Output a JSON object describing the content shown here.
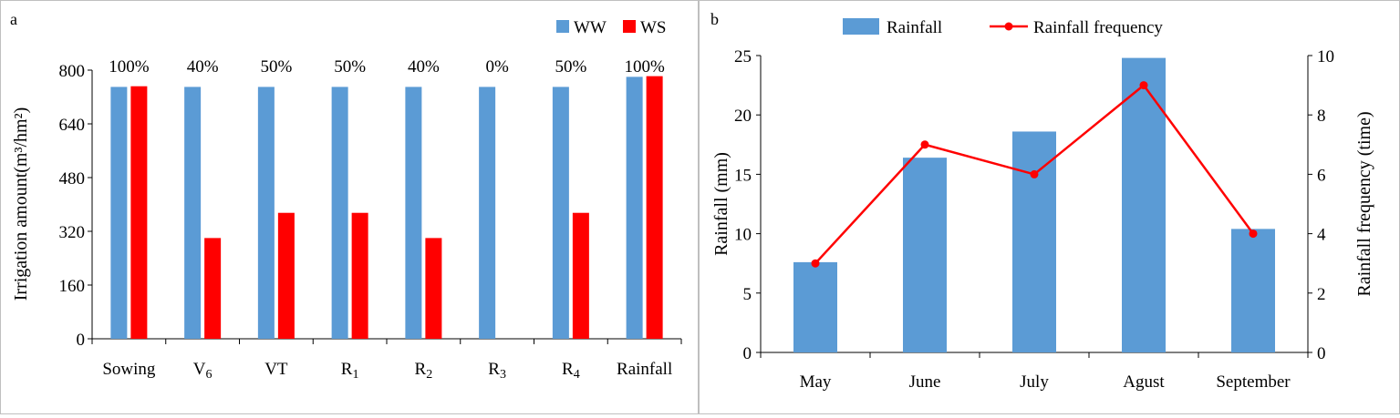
{
  "chart_data": [
    {
      "type": "bar",
      "panel_label": "a",
      "categories": [
        "Sowing",
        "V6",
        "VT",
        "R1",
        "R2",
        "R3",
        "R4",
        "Rainfall"
      ],
      "category_labels": [
        {
          "main": "Sowing",
          "sub": ""
        },
        {
          "main": "V",
          "sub": "6"
        },
        {
          "main": "VT",
          "sub": ""
        },
        {
          "main": "R",
          "sub": "1"
        },
        {
          "main": "R",
          "sub": "2"
        },
        {
          "main": "R",
          "sub": "3"
        },
        {
          "main": "R",
          "sub": "4"
        },
        {
          "main": "Rainfall",
          "sub": ""
        }
      ],
      "series": [
        {
          "name": "WW",
          "color": "#5b9bd5",
          "values": [
            750,
            750,
            750,
            750,
            750,
            750,
            750,
            780
          ]
        },
        {
          "name": "WS",
          "color": "#ff0000",
          "values": [
            752,
            300,
            375,
            375,
            300,
            0,
            375,
            782
          ]
        }
      ],
      "annotations": [
        "100%",
        "40%",
        "50%",
        "50%",
        "40%",
        "0%",
        "50%",
        "100%"
      ],
      "ylabel": "Irrigation amount(m³/hm²)",
      "ylim": [
        0,
        800
      ],
      "yticks": [
        0,
        160,
        320,
        480,
        640,
        800
      ],
      "grid": false,
      "legend_position": "top-right"
    },
    {
      "type": "bar",
      "panel_label": "b",
      "categories": [
        "May",
        "June",
        "July",
        "Agust",
        "September"
      ],
      "series": [
        {
          "name": "Rainfall",
          "type": "bar",
          "axis": "left",
          "color": "#5b9bd5",
          "values": [
            7.6,
            16.4,
            18.6,
            24.8,
            10.4
          ]
        },
        {
          "name": "Rainfall frequency",
          "type": "line",
          "axis": "right",
          "color": "#ff0000",
          "values": [
            3,
            7,
            6,
            9,
            4
          ]
        }
      ],
      "ylabel": "Rainfall (mm)",
      "ylim": [
        0,
        25
      ],
      "yticks": [
        0,
        5,
        10,
        15,
        20,
        25
      ],
      "y2label": "Rainfall frequency (time)",
      "y2lim": [
        0,
        10
      ],
      "y2ticks": [
        0,
        2,
        4,
        6,
        8,
        10
      ],
      "grid": false,
      "legend_position": "top-center"
    }
  ]
}
